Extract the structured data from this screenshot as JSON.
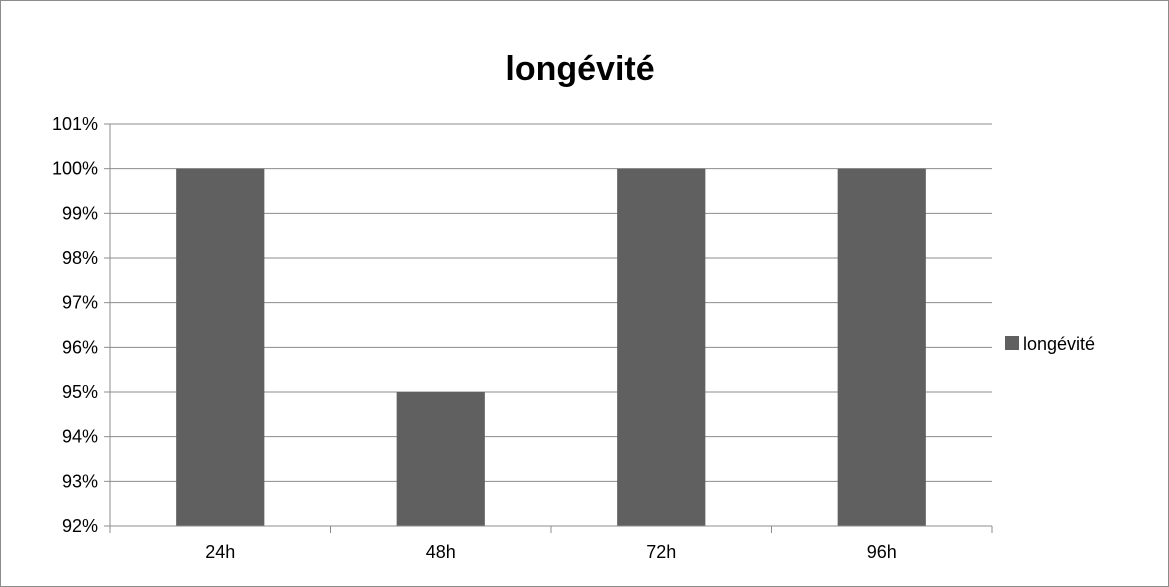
{
  "chart_data": {
    "type": "bar",
    "title": "longévité",
    "xlabel": "",
    "ylabel": "",
    "categories": [
      "24h",
      "48h",
      "72h",
      "96h"
    ],
    "series": [
      {
        "name": "longévité",
        "values": [
          100,
          95,
          100,
          100
        ],
        "color": "#606060"
      }
    ],
    "ylim": [
      92,
      101
    ],
    "yticks": [
      "92%",
      "93%",
      "94%",
      "95%",
      "96%",
      "97%",
      "98%",
      "99%",
      "100%",
      "101%"
    ],
    "grid": true,
    "legend_position": "right"
  }
}
